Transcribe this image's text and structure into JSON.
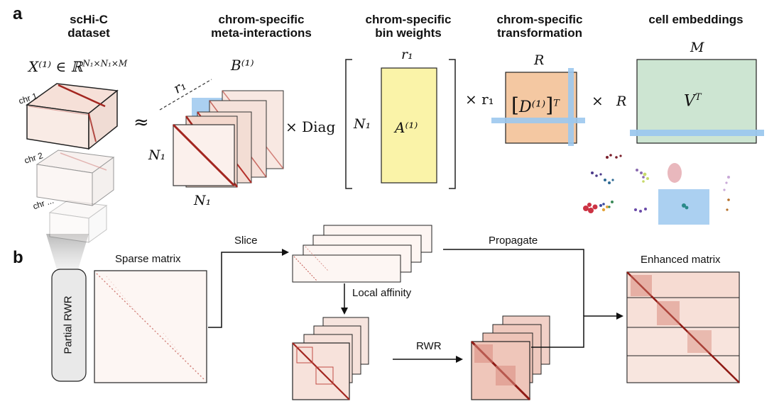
{
  "panel_a": {
    "letter": "a",
    "headers": {
      "dataset": [
        "scHi-C",
        "dataset"
      ],
      "meta": [
        "chrom-specific",
        "meta-interactions"
      ],
      "binweights": [
        "chrom-specific",
        "bin weights"
      ],
      "transform": [
        "chrom-specific",
        "transformation"
      ],
      "embeddings": [
        "cell embeddings"
      ]
    },
    "tensor_label": "X⁽¹⁾ ∈ ℝ",
    "tensor_sup": "N₁×N₁×M",
    "chr_labels": [
      "chr 1",
      "chr 2",
      "chr ..."
    ],
    "approx": "≈",
    "B_label": "B⁽¹⁾",
    "r1_label": "r₁",
    "N1_label": "N₁",
    "times_diag": "× Diag",
    "A_label": "A⁽¹⁾",
    "times_r1": "× r₁",
    "R_label": "R",
    "D_label": "D⁽¹⁾",
    "D_sup": "T",
    "times": "×",
    "M_label": "M",
    "V_label": "V",
    "V_sup": "T"
  },
  "panel_b": {
    "letter": "b",
    "partial_rwr": "Partial RWR",
    "sparse_matrix": "Sparse matrix",
    "slice": "Slice",
    "local_affinity": "Local affinity",
    "rwr": "RWR",
    "propagate": "Propagate",
    "enhanced_matrix": "Enhanced matrix"
  },
  "colors": {
    "heat": "#b5302a",
    "heat_light": "#f6e3dc",
    "blue": "#9cc8ee",
    "yellow": "#faf3a8",
    "orange": "#f4c8a2",
    "green": "#cde5d2"
  }
}
